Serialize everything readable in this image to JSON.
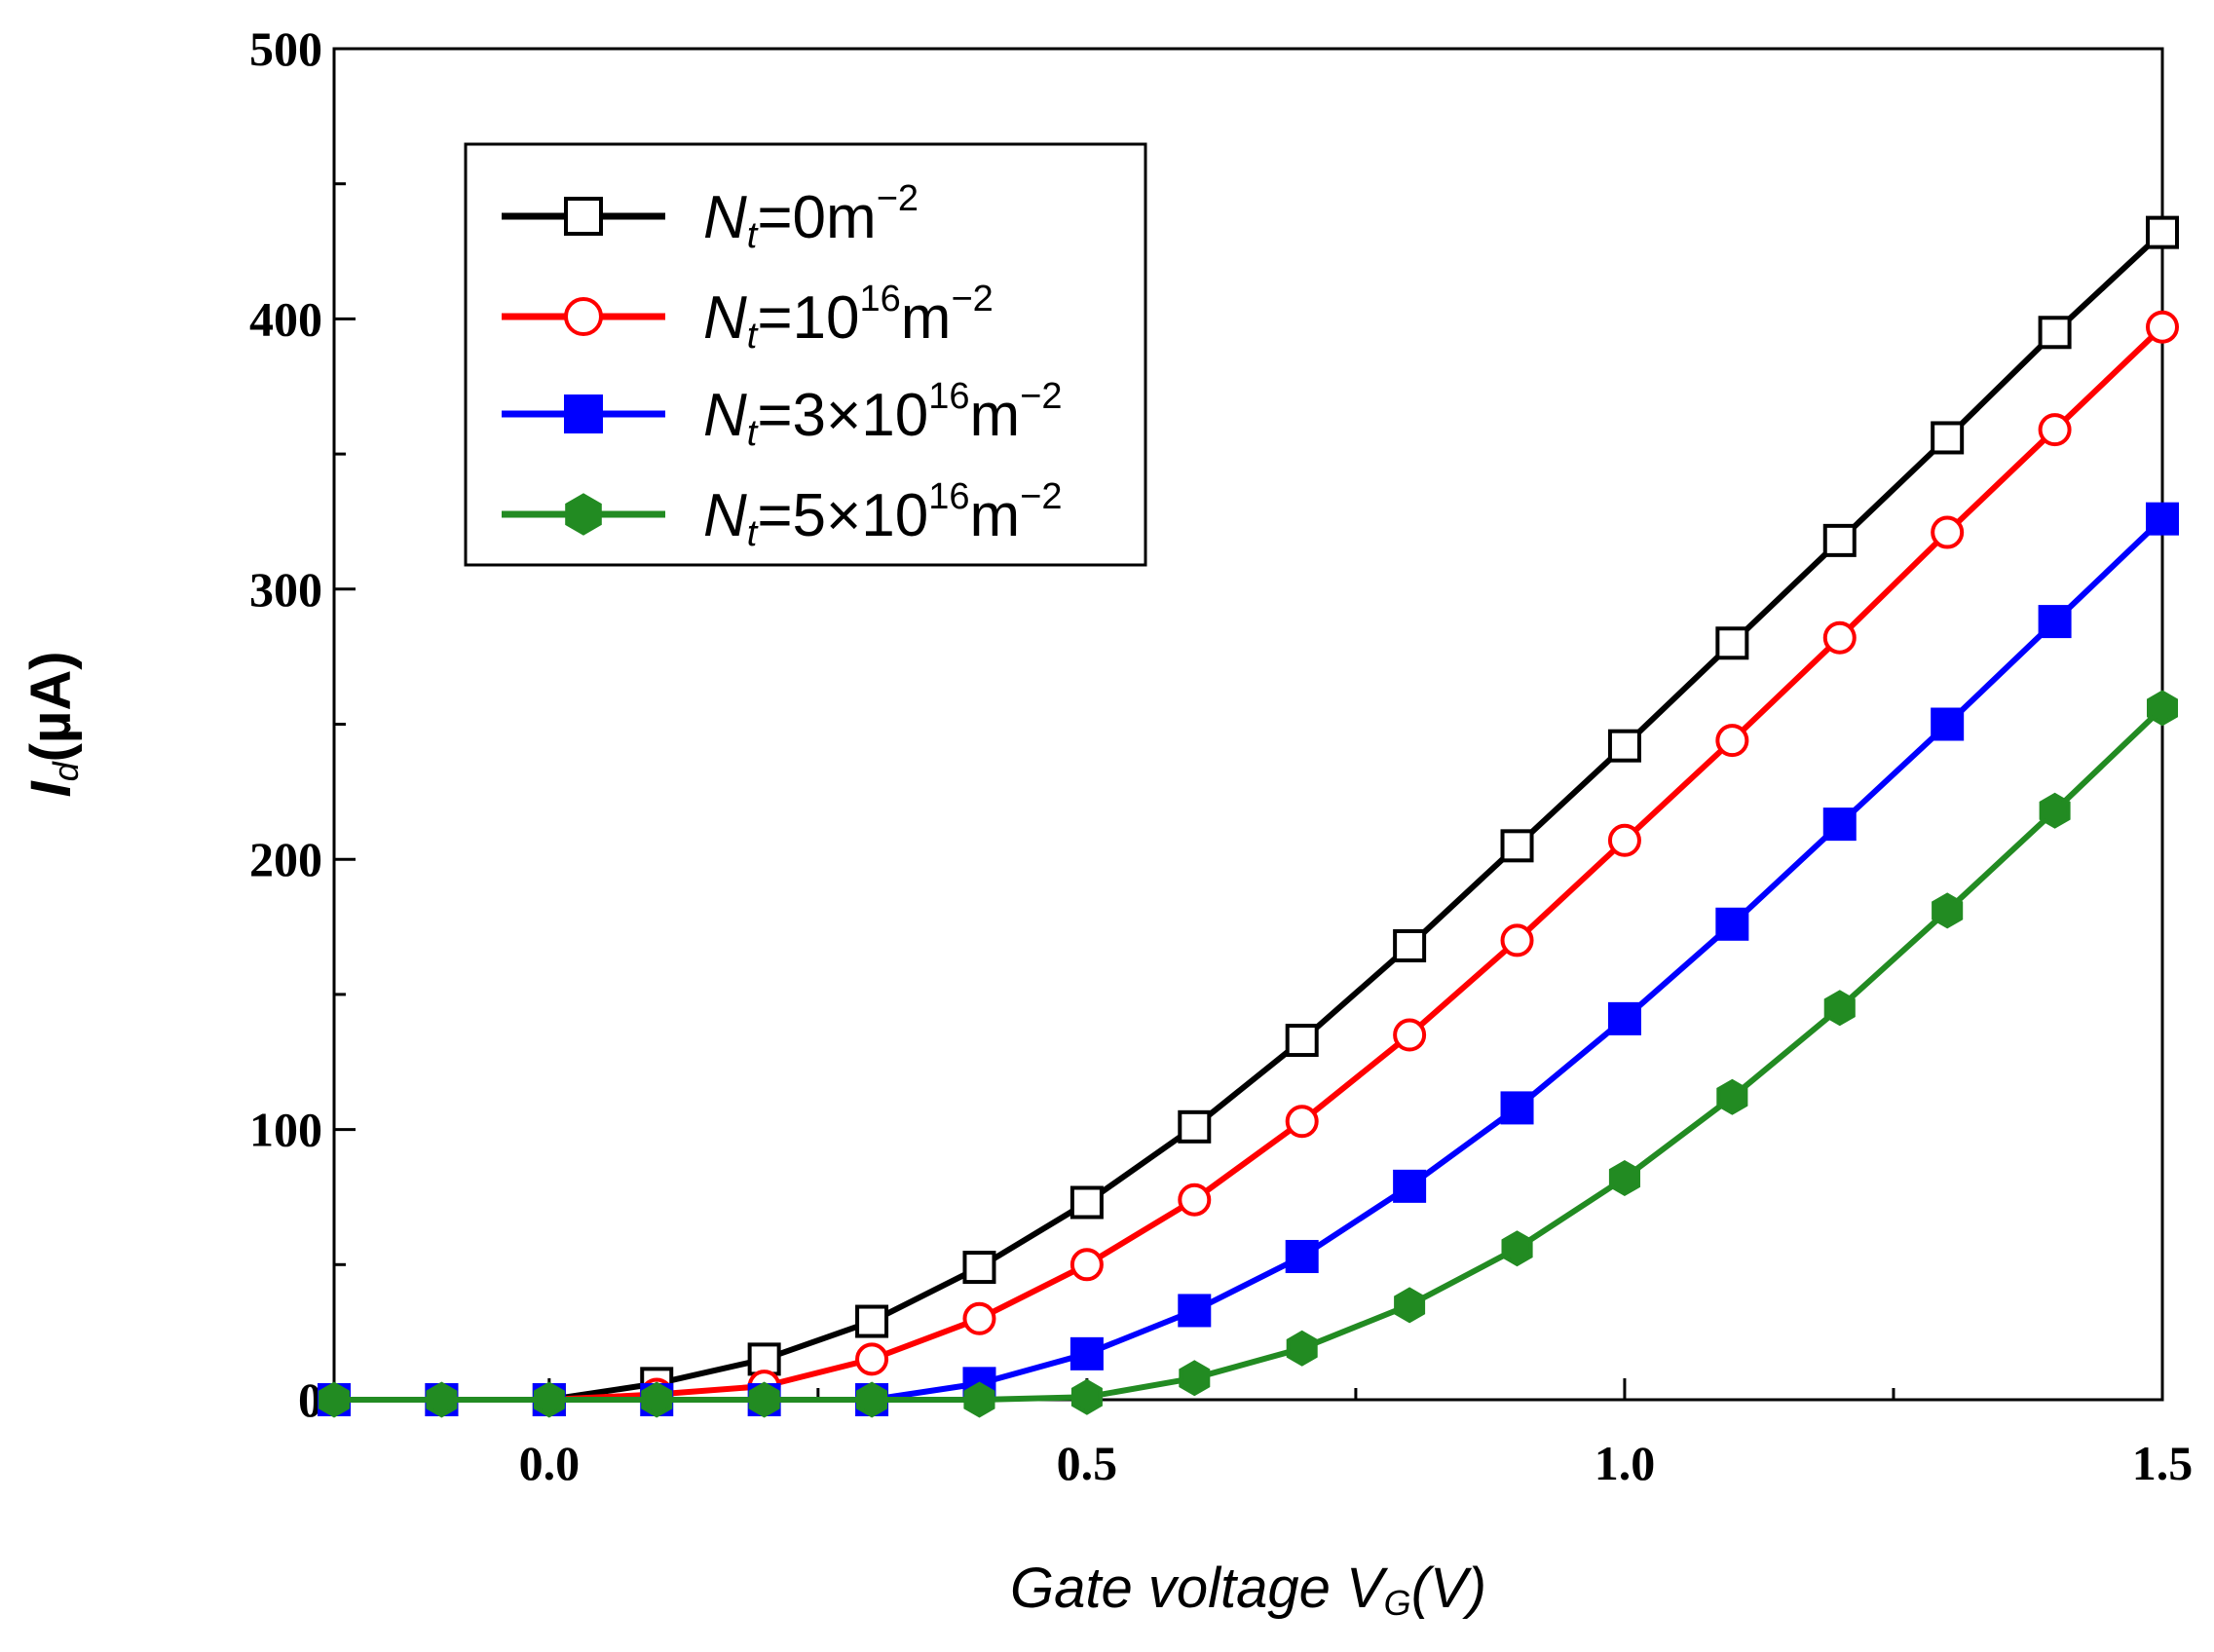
{
  "chart_data": {
    "type": "line",
    "title": "",
    "xlabel": {
      "prefix": "Gate voltage ",
      "symbol": "V",
      "subscript": "G",
      "suffix": "(V)"
    },
    "ylabel": {
      "symbol": "I",
      "subscript": "d",
      "suffix": "(µA)"
    },
    "xlim": [
      -0.2,
      1.5
    ],
    "ylim": [
      0,
      500
    ],
    "xticks": [
      0.0,
      0.5,
      1.0,
      1.5
    ],
    "xtick_labels": [
      "0.0",
      "0.5",
      "1.0",
      "1.5"
    ],
    "xminor": [
      -0.25,
      0.25,
      0.75,
      1.25
    ],
    "yticks": [
      0,
      100,
      200,
      300,
      400,
      500
    ],
    "ytick_labels": [
      "0",
      "100",
      "200",
      "300",
      "400",
      "500"
    ],
    "yminor": [
      50,
      150,
      250,
      350,
      450
    ],
    "grid": false,
    "legend_position": "top-left",
    "x": [
      -0.2,
      -0.1,
      0.0,
      0.1,
      0.2,
      0.3,
      0.4,
      0.5,
      0.6,
      0.7,
      0.8,
      0.9,
      1.0,
      1.1,
      1.2,
      1.3,
      1.4,
      1.5
    ],
    "series": [
      {
        "name": "Nt=0m-2",
        "label": {
          "symbol": "N",
          "subscript": "t",
          "text": "=0m",
          "superscript": "−2"
        },
        "color": "#000000",
        "marker": "square",
        "filled": false,
        "values": [
          0,
          0,
          0,
          6,
          15,
          29,
          49,
          73,
          101,
          133,
          168,
          205,
          242,
          280,
          318,
          356,
          395,
          432
        ]
      },
      {
        "name": "Nt=10^16m-2",
        "label": {
          "symbol": "N",
          "subscript": "t",
          "text": "=10",
          "superscript": "16",
          "text2": "m",
          "superscript2": "−2"
        },
        "color": "#ff0000",
        "marker": "circle",
        "filled": false,
        "values": [
          0,
          0,
          0,
          2,
          5,
          15,
          30,
          50,
          74,
          103,
          135,
          170,
          207,
          244,
          282,
          321,
          359,
          397
        ]
      },
      {
        "name": "Nt=3x10^16m-2",
        "label": {
          "symbol": "N",
          "subscript": "t",
          "text": "=3×10",
          "superscript": "16",
          "text2": "m",
          "superscript2": "−2"
        },
        "color": "#0000ff",
        "marker": "square",
        "filled": true,
        "values": [
          0,
          0,
          0,
          0,
          0,
          0,
          6,
          17,
          33,
          53,
          79,
          108,
          141,
          176,
          213,
          250,
          288,
          326
        ]
      },
      {
        "name": "Nt=5x10^16m-2",
        "label": {
          "symbol": "N",
          "subscript": "t",
          "text": "=5×10",
          "superscript": "16",
          "text2": "m",
          "superscript2": "−2"
        },
        "color": "#228b22",
        "marker": "hexagon",
        "filled": true,
        "values": [
          0,
          0,
          0,
          0,
          0,
          0,
          0,
          1,
          8,
          19,
          35,
          56,
          82,
          112,
          145,
          181,
          218,
          256
        ]
      }
    ]
  }
}
